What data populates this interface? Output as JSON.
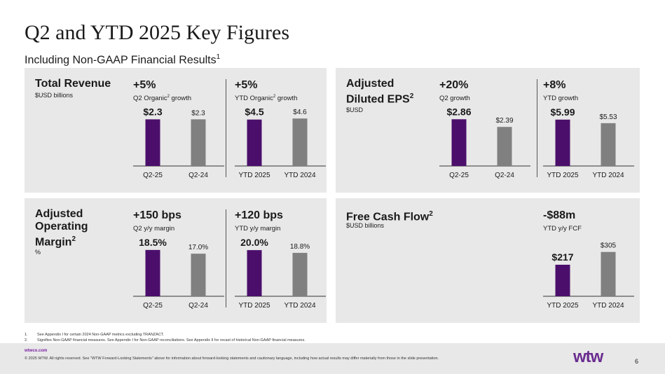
{
  "header": {
    "title": "Q2 and YTD 2025 Key Figures",
    "subtitle": "Including Non-GAAP Financial Results",
    "subtitle_sup": "1"
  },
  "colors": {
    "accent": "#4b0f6b",
    "neutral": "#808080",
    "brand": "#6b2c91",
    "panel": "#e8e8e8"
  },
  "panels": {
    "revenue": {
      "title": "Total Revenue",
      "unit": "$USD billions"
    },
    "eps": {
      "title_line1": "Adjusted",
      "title_line2": "Diluted EPS",
      "title_sup": "2",
      "unit": "$USD"
    },
    "opm": {
      "title_line1": "Adjusted",
      "title_line2": "Operating",
      "title_line3": "Margin",
      "title_sup": "2",
      "unit": "%"
    },
    "fcf": {
      "title": "Free Cash Flow",
      "title_sup": "2",
      "unit": "$USD billions"
    }
  },
  "chart_data": [
    {
      "id": "rev-q2",
      "type": "bar",
      "metric": "+5%",
      "label_pre": "Q2 Organic",
      "label_sup": "2",
      "label_post": " growth",
      "categories": [
        "Q2-25",
        "Q2-24"
      ],
      "values": [
        2.3,
        2.3
      ],
      "value_labels": [
        "$2.3",
        "$2.3"
      ],
      "ylim": [
        0,
        2.9
      ]
    },
    {
      "id": "rev-ytd",
      "type": "bar",
      "metric": "+5%",
      "label_pre": "YTD Organic",
      "label_sup": "2",
      "label_post": " growth",
      "categories": [
        "YTD 2025",
        "YTD 2024"
      ],
      "values": [
        4.5,
        4.6
      ],
      "value_labels": [
        "$4.5",
        "$4.6"
      ],
      "ylim": [
        0,
        5.7
      ]
    },
    {
      "id": "eps-q2",
      "type": "bar",
      "metric": "+20%",
      "label_pre": "Q2 growth",
      "label_sup": "",
      "label_post": "",
      "categories": [
        "Q2-25",
        "Q2-24"
      ],
      "values": [
        2.86,
        2.39
      ],
      "value_labels": [
        "$2.86",
        "$2.39"
      ],
      "ylim": [
        0,
        3.6
      ]
    },
    {
      "id": "eps-ytd",
      "type": "bar",
      "metric": "+8%",
      "label_pre": "YTD growth",
      "label_sup": "",
      "label_post": "",
      "categories": [
        "YTD 2025",
        "YTD 2024"
      ],
      "values": [
        5.99,
        5.53
      ],
      "value_labels": [
        "$5.99",
        "$5.53"
      ],
      "ylim": [
        0,
        7.6
      ]
    },
    {
      "id": "opm-q2",
      "type": "bar",
      "metric": "+150 bps",
      "label_pre": "Q2 y/y margin",
      "label_sup": "",
      "label_post": "",
      "categories": [
        "Q2-25",
        "Q2-24"
      ],
      "values": [
        18.5,
        17.0
      ],
      "value_labels": [
        "18.5%",
        "17.0%"
      ],
      "ylim": [
        0,
        23.5
      ]
    },
    {
      "id": "opm-ytd",
      "type": "bar",
      "metric": "+120 bps",
      "label_pre": "YTD y/y margin",
      "label_sup": "",
      "label_post": "",
      "categories": [
        "YTD 2025",
        "YTD 2024"
      ],
      "values": [
        20.0,
        18.8
      ],
      "value_labels": [
        "20.0%",
        "18.8%"
      ],
      "ylim": [
        0,
        25.5
      ]
    },
    {
      "id": "fcf-ytd",
      "type": "bar",
      "metric": "-$88m",
      "label_pre": "YTD y/y FCF",
      "label_sup": "",
      "label_post": "",
      "categories": [
        "YTD 2025",
        "YTD 2024"
      ],
      "values": [
        217,
        305
      ],
      "value_labels": [
        "$217",
        "$305"
      ],
      "ylim": [
        0,
        405
      ]
    }
  ],
  "footnotes": [
    {
      "num": "1.",
      "text": "See Appendix I for certain 2024 Non-GAAP metrics excluding TRANZACT."
    },
    {
      "num": "2.",
      "text": "Signifies Non-GAAP financial measures. See Appendix I for Non-GAAP reconciliations. See Appendix II for recast of historical Non-GAAP financial measures."
    }
  ],
  "footer": {
    "url": "wtwco.com",
    "copyright": "© 2025 WTW. All rights reserved. See \"WTW Forward-Looking Statements\" above for information about forward-looking statements and cautionary language, including how actual results may differ materially from those in the slide presentation.",
    "logo": "wtw",
    "page": "6"
  }
}
